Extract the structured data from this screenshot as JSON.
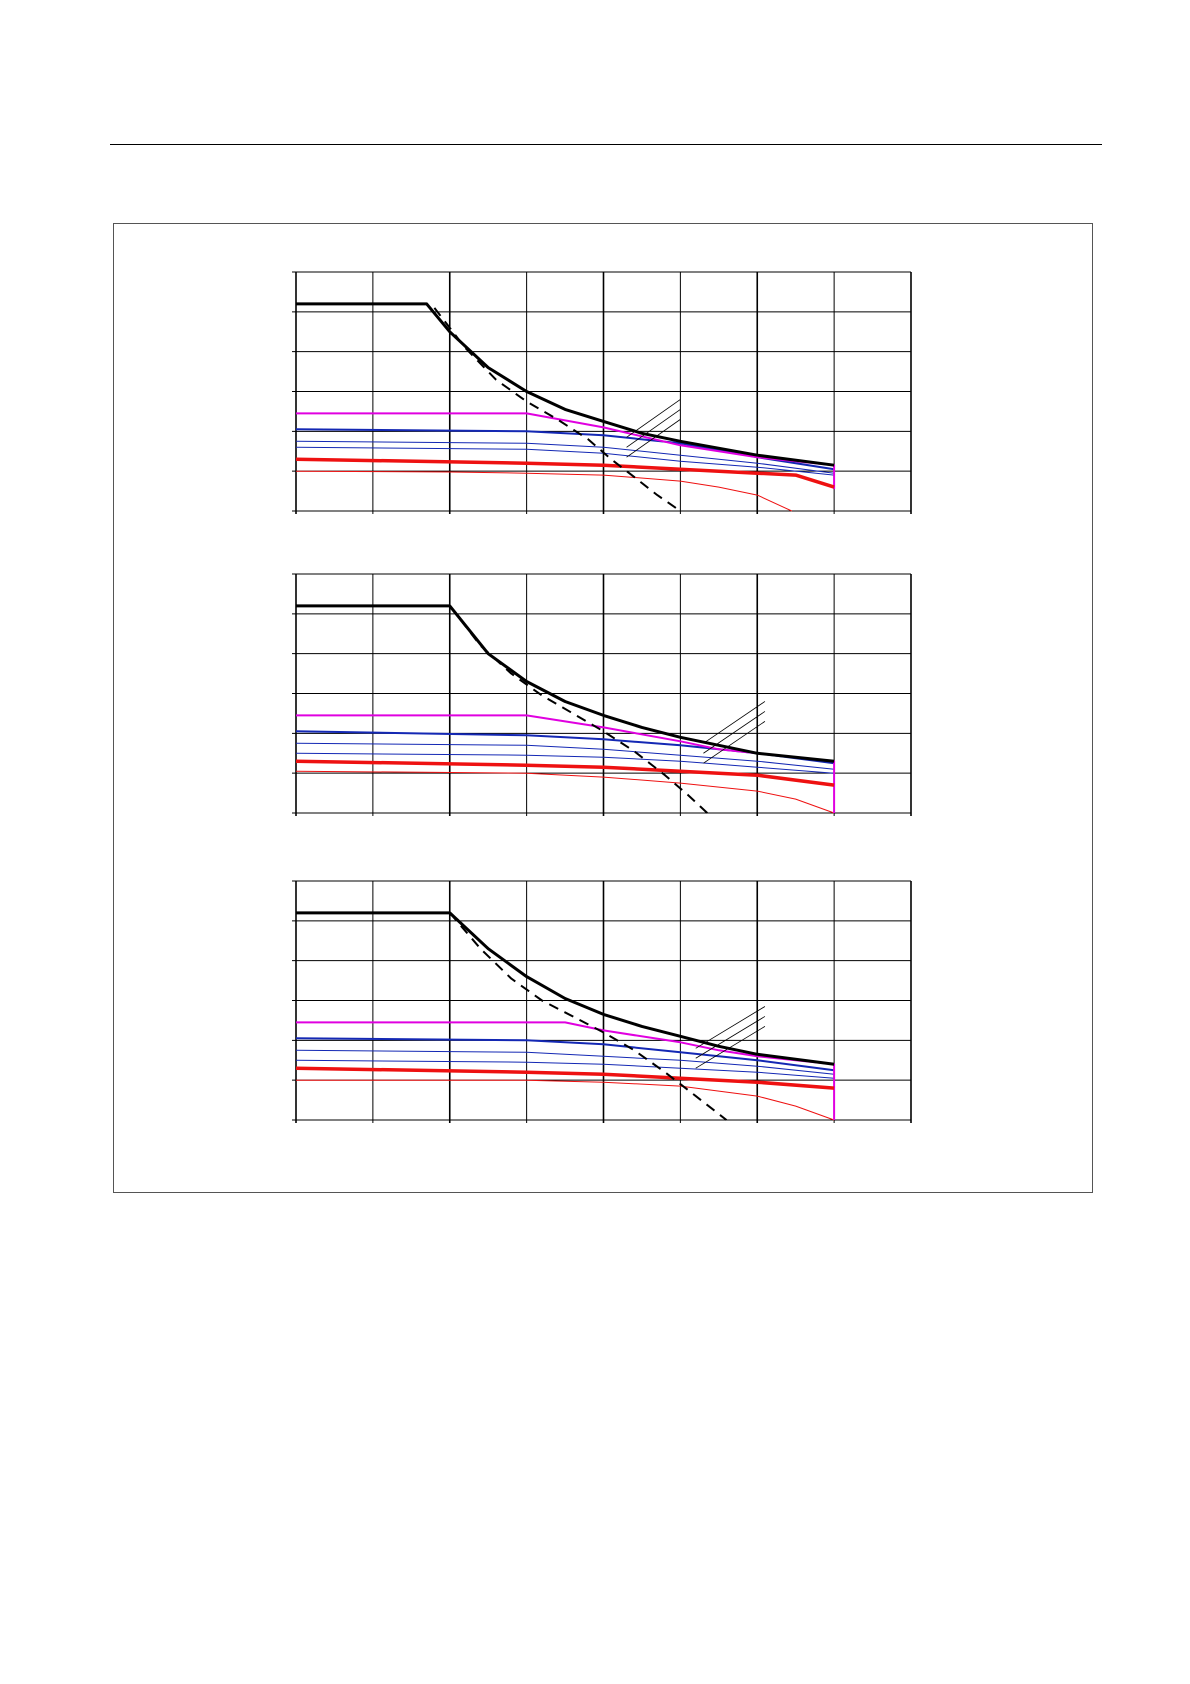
{
  "page": {
    "header_text": "",
    "figure_caption": ""
  },
  "colors": {
    "envelope": "#000000",
    "limit_dashed": "#000000",
    "magenta": "#e000e0",
    "blue": "#1428b4",
    "red": "#ee1111",
    "grid": "#000000"
  },
  "chart_data": [
    {
      "type": "line",
      "title": "",
      "xlabel": "",
      "ylabel": "",
      "xlim": [
        0,
        8
      ],
      "ylim": [
        0,
        6
      ],
      "x_gridlines": [
        0,
        1,
        2,
        3,
        4,
        5,
        6,
        7,
        8
      ],
      "y_gridlines": [
        0,
        1,
        2,
        3,
        4,
        5,
        6
      ],
      "grid": true,
      "series": [
        {
          "style": "thick-black",
          "x": [
            0,
            1.7,
            2.0,
            2.5,
            3.0,
            3.5,
            4.0,
            4.5,
            5.0,
            6.0,
            7.0
          ],
          "y": [
            5.2,
            5.2,
            4.5,
            3.6,
            3.0,
            2.55,
            2.25,
            1.95,
            1.75,
            1.4,
            1.15
          ]
        },
        {
          "style": "dashed-black",
          "x": [
            1.8,
            2.2,
            2.6,
            3.0,
            3.4,
            3.8,
            4.1,
            4.4,
            4.7,
            5.0
          ],
          "y": [
            5.1,
            4.1,
            3.3,
            2.75,
            2.3,
            1.8,
            1.3,
            0.85,
            0.4,
            0.0
          ]
        },
        {
          "style": "magenta",
          "x": [
            0,
            3.0,
            4.0,
            5.0,
            5.5,
            6.0,
            7.0,
            7.0
          ],
          "y": [
            2.45,
            2.45,
            2.1,
            1.65,
            1.5,
            1.35,
            1.15,
            0.55
          ]
        },
        {
          "style": "blue-thick",
          "x": [
            0,
            3.0,
            4.0,
            5.0,
            6.0,
            7.0
          ],
          "y": [
            2.05,
            2.0,
            1.9,
            1.7,
            1.35,
            1.05
          ]
        },
        {
          "style": "blue-thin",
          "x": [
            0,
            3.0,
            4.0,
            5.0,
            6.0,
            7.0
          ],
          "y": [
            1.75,
            1.7,
            1.6,
            1.4,
            1.2,
            0.95
          ]
        },
        {
          "style": "blue-thin",
          "x": [
            0,
            3.0,
            4.0,
            5.0,
            6.0,
            7.0
          ],
          "y": [
            1.6,
            1.55,
            1.45,
            1.25,
            1.1,
            0.9
          ]
        },
        {
          "style": "red-thick",
          "x": [
            0,
            3.0,
            4.0,
            5.0,
            6.0,
            6.5,
            7.0
          ],
          "y": [
            1.3,
            1.2,
            1.15,
            1.05,
            0.95,
            0.9,
            0.6
          ]
        },
        {
          "style": "red-thin",
          "x": [
            0,
            2.0,
            3.0,
            4.0,
            5.0,
            5.5,
            6.0,
            6.45
          ],
          "y": [
            1.0,
            0.98,
            0.95,
            0.9,
            0.75,
            0.6,
            0.4,
            0.0
          ]
        }
      ],
      "annotation_leaders": [
        {
          "x1": 5.0,
          "y1": 2.8,
          "x2": 4.3,
          "y2": 1.85
        },
        {
          "x1": 5.0,
          "y1": 2.55,
          "x2": 4.3,
          "y2": 1.6
        },
        {
          "x1": 5.0,
          "y1": 2.3,
          "x2": 4.3,
          "y2": 1.35
        }
      ]
    },
    {
      "type": "line",
      "title": "",
      "xlabel": "",
      "ylabel": "",
      "xlim": [
        0,
        8
      ],
      "ylim": [
        0,
        6
      ],
      "x_gridlines": [
        0,
        1,
        2,
        3,
        4,
        5,
        6,
        7,
        8
      ],
      "y_gridlines": [
        0,
        1,
        2,
        3,
        4,
        5,
        6
      ],
      "grid": true,
      "series": [
        {
          "style": "thick-black",
          "x": [
            0,
            2.0,
            2.5,
            3.0,
            3.5,
            4.0,
            4.5,
            5.0,
            5.5,
            6.0,
            7.0
          ],
          "y": [
            5.2,
            5.2,
            4.0,
            3.3,
            2.8,
            2.45,
            2.15,
            1.9,
            1.7,
            1.5,
            1.3
          ]
        },
        {
          "style": "dashed-black",
          "x": [
            2.0,
            2.4,
            2.8,
            3.2,
            3.6,
            4.0,
            4.4,
            4.8,
            5.1,
            5.35
          ],
          "y": [
            5.2,
            4.2,
            3.5,
            2.95,
            2.5,
            2.05,
            1.55,
            0.95,
            0.45,
            0.0
          ]
        },
        {
          "style": "magenta",
          "x": [
            0,
            3.0,
            4.0,
            5.0,
            5.5,
            6.0,
            7.0,
            7.0
          ],
          "y": [
            2.45,
            2.45,
            2.15,
            1.8,
            1.6,
            1.5,
            1.3,
            0.0
          ]
        },
        {
          "style": "blue-thick",
          "x": [
            0,
            3.0,
            4.0,
            5.0,
            6.0,
            7.0
          ],
          "y": [
            2.05,
            1.95,
            1.85,
            1.7,
            1.5,
            1.25
          ]
        },
        {
          "style": "blue-thin",
          "x": [
            0,
            3.0,
            4.0,
            5.0,
            6.0,
            7.0
          ],
          "y": [
            1.75,
            1.7,
            1.6,
            1.45,
            1.3,
            1.1
          ]
        },
        {
          "style": "blue-thin",
          "x": [
            0,
            3.0,
            4.0,
            5.0,
            6.0,
            7.0
          ],
          "y": [
            1.5,
            1.45,
            1.4,
            1.3,
            1.15,
            1.0
          ]
        },
        {
          "style": "red-thick",
          "x": [
            0,
            3.0,
            4.0,
            5.0,
            6.0,
            7.0
          ],
          "y": [
            1.3,
            1.2,
            1.15,
            1.05,
            0.95,
            0.7
          ]
        },
        {
          "style": "red-thin",
          "x": [
            0,
            3.0,
            4.0,
            5.0,
            6.0,
            6.5,
            7.0
          ],
          "y": [
            1.05,
            1.0,
            0.9,
            0.75,
            0.55,
            0.35,
            0.0
          ]
        }
      ],
      "annotation_leaders": [
        {
          "x1": 6.1,
          "y1": 2.8,
          "x2": 5.3,
          "y2": 1.75
        },
        {
          "x1": 6.1,
          "y1": 2.55,
          "x2": 5.3,
          "y2": 1.5
        },
        {
          "x1": 6.1,
          "y1": 2.3,
          "x2": 5.3,
          "y2": 1.25
        }
      ]
    },
    {
      "type": "line",
      "title": "",
      "xlabel": "",
      "ylabel": "",
      "xlim": [
        0,
        8
      ],
      "ylim": [
        0,
        6
      ],
      "x_gridlines": [
        0,
        1,
        2,
        3,
        4,
        5,
        6,
        7,
        8
      ],
      "y_gridlines": [
        0,
        1,
        2,
        3,
        4,
        5,
        6
      ],
      "grid": true,
      "series": [
        {
          "style": "thick-black",
          "x": [
            0,
            2.0,
            2.5,
            3.0,
            3.5,
            4.0,
            4.5,
            5.0,
            5.5,
            6.0,
            7.0
          ],
          "y": [
            5.2,
            5.2,
            4.3,
            3.6,
            3.05,
            2.65,
            2.35,
            2.1,
            1.85,
            1.65,
            1.4
          ]
        },
        {
          "style": "dashed-black",
          "x": [
            2.0,
            2.4,
            2.8,
            3.2,
            3.6,
            4.0,
            4.4,
            4.8,
            5.2,
            5.6
          ],
          "y": [
            5.2,
            4.3,
            3.55,
            3.0,
            2.6,
            2.2,
            1.75,
            1.2,
            0.6,
            0.0
          ]
        },
        {
          "style": "magenta",
          "x": [
            0,
            3.5,
            4.0,
            5.0,
            5.5,
            6.0,
            7.0,
            7.0
          ],
          "y": [
            2.45,
            2.45,
            2.25,
            1.95,
            1.75,
            1.6,
            1.4,
            0.0
          ]
        },
        {
          "style": "blue-thick",
          "x": [
            0,
            3.0,
            4.0,
            5.0,
            6.0,
            7.0
          ],
          "y": [
            2.05,
            2.0,
            1.9,
            1.7,
            1.5,
            1.25
          ]
        },
        {
          "style": "blue-thin",
          "x": [
            0,
            3.0,
            4.0,
            5.0,
            6.0,
            7.0
          ],
          "y": [
            1.75,
            1.7,
            1.6,
            1.5,
            1.35,
            1.15
          ]
        },
        {
          "style": "blue-thin",
          "x": [
            0,
            3.0,
            4.0,
            5.0,
            6.0,
            7.0
          ],
          "y": [
            1.5,
            1.45,
            1.4,
            1.3,
            1.2,
            1.05
          ]
        },
        {
          "style": "red-thick",
          "x": [
            0,
            3.0,
            4.0,
            5.0,
            6.0,
            7.0
          ],
          "y": [
            1.3,
            1.2,
            1.15,
            1.05,
            0.95,
            0.8
          ]
        },
        {
          "style": "red-thin",
          "x": [
            0,
            3.0,
            4.0,
            5.0,
            6.0,
            6.5,
            7.0
          ],
          "y": [
            1.0,
            1.0,
            0.95,
            0.85,
            0.6,
            0.35,
            0.0
          ]
        }
      ],
      "annotation_leaders": [
        {
          "x1": 6.1,
          "y1": 2.85,
          "x2": 5.2,
          "y2": 1.8
        },
        {
          "x1": 6.1,
          "y1": 2.6,
          "x2": 5.2,
          "y2": 1.55
        },
        {
          "x1": 6.1,
          "y1": 2.35,
          "x2": 5.2,
          "y2": 1.3
        }
      ]
    }
  ]
}
